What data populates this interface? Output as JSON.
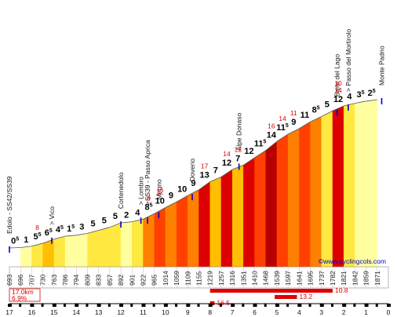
{
  "chart_data": {
    "type": "area",
    "title": "",
    "xlabel": "",
    "ylabel": "",
    "x_direction": "reversed",
    "xlim": [
      17,
      0
    ],
    "x_tick_labels": [
      "17",
      "16",
      "15",
      "14",
      "13",
      "12",
      "11",
      "10",
      "9",
      "8",
      "7",
      "6",
      "5",
      "4",
      "3",
      "2",
      "1",
      "0"
    ],
    "altitudes": [
      "693",
      "696",
      "707",
      "730",
      "763",
      "786",
      "794",
      "809",
      "833",
      "857",
      "892",
      "901",
      "922",
      "965",
      "1014",
      "1059",
      "1109",
      "1155",
      "1219",
      "1257",
      "1316",
      "1351",
      "1410",
      "1468",
      "1539",
      "1597",
      "1641",
      "1695",
      "1737",
      "1782",
      "1821",
      "1842",
      "1859",
      "1871"
    ],
    "segments": [
      {
        "km_from_top": 17.0,
        "grade": "0",
        "grade_decimal": "5",
        "max_grade": ""
      },
      {
        "km_from_top": 16.5,
        "grade": "1",
        "grade_decimal": "",
        "max_grade": ""
      },
      {
        "km_from_top": 16.0,
        "grade": "5",
        "grade_decimal": "5",
        "max_grade": "8"
      },
      {
        "km_from_top": 15.5,
        "grade": "6",
        "grade_decimal": "5",
        "max_grade": ""
      },
      {
        "km_from_top": 15.0,
        "grade": "4",
        "grade_decimal": "5",
        "max_grade": ""
      },
      {
        "km_from_top": 14.5,
        "grade": "1",
        "grade_decimal": "5",
        "max_grade": ""
      },
      {
        "km_from_top": 14.0,
        "grade": "3",
        "grade_decimal": "",
        "max_grade": ""
      },
      {
        "km_from_top": 13.5,
        "grade": "5",
        "grade_decimal": "",
        "max_grade": ""
      },
      {
        "km_from_top": 13.0,
        "grade": "5",
        "grade_decimal": "",
        "max_grade": ""
      },
      {
        "km_from_top": 12.5,
        "grade": "5",
        "grade_decimal": "",
        "max_grade": ""
      },
      {
        "km_from_top": 12.0,
        "grade": "2",
        "grade_decimal": "",
        "max_grade": ""
      },
      {
        "km_from_top": 11.5,
        "grade": "4",
        "grade_decimal": "",
        "max_grade": ""
      },
      {
        "km_from_top": 11.0,
        "grade": "8",
        "grade_decimal": "5",
        "max_grade": "9"
      },
      {
        "km_from_top": 10.5,
        "grade": "10",
        "grade_decimal": "",
        "max_grade": "12"
      },
      {
        "km_from_top": 10.0,
        "grade": "9",
        "grade_decimal": "",
        "max_grade": ""
      },
      {
        "km_from_top": 9.5,
        "grade": "10",
        "grade_decimal": "",
        "max_grade": ""
      },
      {
        "km_from_top": 9.0,
        "grade": "9",
        "grade_decimal": "",
        "max_grade": ""
      },
      {
        "km_from_top": 8.5,
        "grade": "13",
        "grade_decimal": "",
        "max_grade": "17"
      },
      {
        "km_from_top": 8.0,
        "grade": "7",
        "grade_decimal": "",
        "max_grade": ""
      },
      {
        "km_from_top": 7.5,
        "grade": "12",
        "grade_decimal": "",
        "max_grade": "14"
      },
      {
        "km_from_top": 7.0,
        "grade": "7",
        "grade_decimal": "",
        "max_grade": "12"
      },
      {
        "km_from_top": 6.5,
        "grade": "12",
        "grade_decimal": "",
        "max_grade": ""
      },
      {
        "km_from_top": 6.0,
        "grade": "11",
        "grade_decimal": "5",
        "max_grade": ""
      },
      {
        "km_from_top": 5.5,
        "grade": "14",
        "grade_decimal": "",
        "max_grade": "16"
      },
      {
        "km_from_top": 5.0,
        "grade": "11",
        "grade_decimal": "5",
        "max_grade": "14"
      },
      {
        "km_from_top": 4.5,
        "grade": "9",
        "grade_decimal": "",
        "max_grade": "11"
      },
      {
        "km_from_top": 4.0,
        "grade": "11",
        "grade_decimal": "",
        "max_grade": ""
      },
      {
        "km_from_top": 3.5,
        "grade": "8",
        "grade_decimal": "5",
        "max_grade": ""
      },
      {
        "km_from_top": 3.0,
        "grade": "5",
        "grade_decimal": "",
        "max_grade": ""
      },
      {
        "km_from_top": 2.5,
        "grade": "12",
        "grade_decimal": "",
        "max_grade": "10 14"
      },
      {
        "km_from_top": 2.0,
        "grade": "4",
        "grade_decimal": "",
        "max_grade": ""
      },
      {
        "km_from_top": 1.5,
        "grade": "3",
        "grade_decimal": "5",
        "max_grade": ""
      },
      {
        "km_from_top": 1.0,
        "grade": "2",
        "grade_decimal": "5",
        "max_grade": ""
      }
    ],
    "places": [
      {
        "km": 17.0,
        "label": "Edolo - SS42/SS39"
      },
      {
        "km": 15.1,
        "label": "> Vico"
      },
      {
        "km": 12.0,
        "label": "Cortenedolo"
      },
      {
        "km": 11.1,
        "label": "> Lombro"
      },
      {
        "km": 10.8,
        "label": ">SS39 - Passo Aprica"
      },
      {
        "km": 10.3,
        "label": "Megno"
      },
      {
        "km": 8.8,
        "label": "Doverio"
      },
      {
        "km": 6.7,
        "label": "Alpe Donaso"
      },
      {
        "km": 2.3,
        "label": "Baite del Lago"
      },
      {
        "km": 1.8,
        "label": "> Passo del Mortirolo"
      },
      {
        "km": 0.3,
        "label": "Monte Padrio"
      }
    ],
    "summary": {
      "distance": "17.0km",
      "average": "6.9%"
    },
    "steep_bars": [
      {
        "label": "10.8",
        "km_start": 8.0,
        "km_end": 2.5
      },
      {
        "label": "13.2",
        "km_start": 5.1,
        "km_end": 4.1
      },
      {
        "label": "16.5",
        "km_start": 8.0,
        "km_end": 7.8
      }
    ],
    "credit": "©www.cyclingcols.com",
    "grade_colors": {
      "very_easy": "#ffffff",
      "easy": "#ffffa0",
      "moderate": "#ffe840",
      "medium": "#ffbe00",
      "hard": "#ff8000",
      "very_hard": "#ff4000",
      "extreme": "#dd0000",
      "steepest": "#b80000"
    },
    "axis_color": "#000000",
    "steep_bar_color": "#e00000",
    "marker_color": "#0000cc"
  }
}
